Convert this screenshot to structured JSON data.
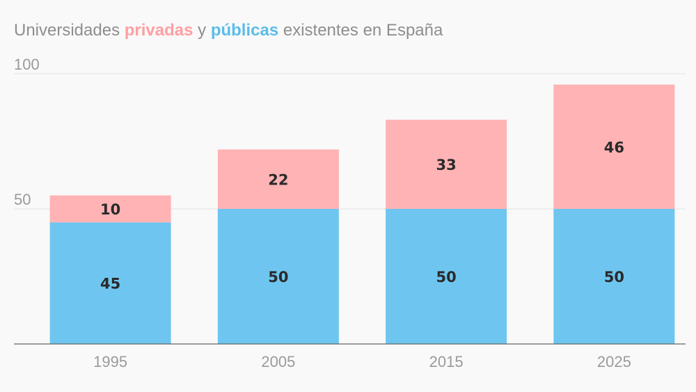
{
  "title": {
    "part1": "Universidades ",
    "private_word": "privadas",
    "part2": " y ",
    "public_word": "públicas",
    "part3": " existentes en España"
  },
  "colors": {
    "privadas": "#ffb3b5",
    "publicas": "#6ec6f0",
    "title_text": "#8e8e8e",
    "private_title": "#ff9fa3",
    "public_title": "#5bbde8",
    "grid": "#e4e4e4",
    "axis": "#666666"
  },
  "chart_data": {
    "type": "bar",
    "stacked": true,
    "categories": [
      "1995",
      "2005",
      "2015",
      "2025"
    ],
    "series": [
      {
        "name": "públicas",
        "values": [
          45,
          50,
          50,
          50
        ]
      },
      {
        "name": "privadas",
        "values": [
          10,
          22,
          33,
          46
        ]
      }
    ],
    "ylim": [
      0,
      100
    ],
    "yticks": [
      50,
      100
    ],
    "grid": true,
    "legend": "in-title"
  }
}
